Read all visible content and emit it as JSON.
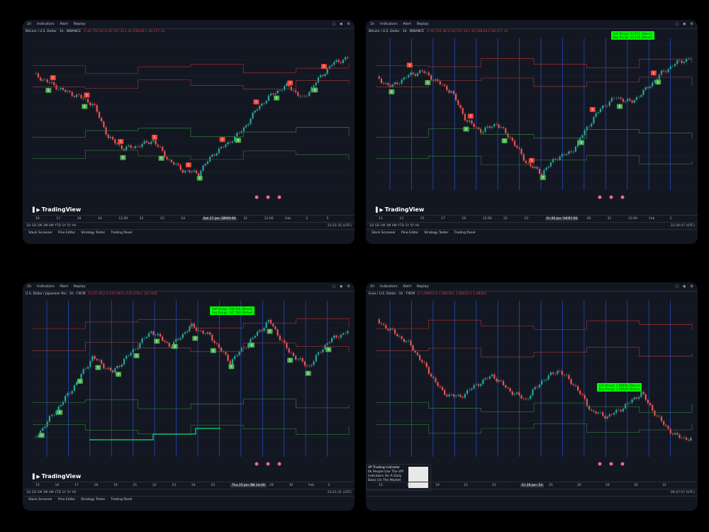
{
  "colors": {
    "background": "#131722",
    "grid": "#1f2430",
    "bull": "#26a69a",
    "bear": "#ef5350",
    "buy": "#4caf50",
    "sell": "#f44336",
    "blue_line": "#2962ff",
    "alert_green": "#00ff00"
  },
  "toolbar": {
    "interval": "1h",
    "indicators_label": "Indicators",
    "alert_label": "Alert",
    "replay_label": "Replay"
  },
  "tabs": [
    "Stock Screener",
    "Pine Editor",
    "Strategy Tester",
    "Trading Panel"
  ],
  "timeframes": [
    "1D",
    "5D",
    "1M",
    "3M",
    "6M",
    "YTD",
    "1Y",
    "5Y",
    "All"
  ],
  "branding": {
    "logo_text": "TradingView"
  },
  "panels": [
    {
      "symbol_line": "Bitcoin / U.S. Dollar · 1h · BINANCE",
      "ohlc": "O 42,752.46 H 42,767.33 L 42,558.00 C 42,577.33",
      "ticker": "BTCUSDT",
      "x_labels": [
        "16",
        "17",
        "18",
        "19",
        "12:00",
        "22",
        "23",
        "24",
        "Sat 27 Jan '24 09:00",
        "29",
        "31",
        "12:00",
        "Feb",
        "2",
        "5"
      ],
      "clock": "23:21:35 (UTC)",
      "signals": {
        "buy": [
          "B",
          "B",
          "B",
          "B",
          "B",
          "B",
          "B",
          "B"
        ],
        "sell": [
          "S",
          "S",
          "S",
          "S",
          "S",
          "S",
          "S",
          "S",
          "S"
        ]
      }
    },
    {
      "symbol_line": "Bitcoin / U.S. Dollar · 1h · BINANCE",
      "ohlc": "O 42,752.46 H 42,767.33 L 42,558.00 C 42,577.33",
      "ticker": "BTCUSDT",
      "x_labels": [
        "11",
        "13",
        "15",
        "17",
        "19",
        "12:00",
        "22",
        "23",
        "Fri 26 Jan '24 07:00",
        "27",
        "29",
        "31",
        "12:00",
        "Feb",
        "2"
      ],
      "clock": "22:30:47 (UTC)",
      "alert": [
        "Sell Range: 43,471 (Above)",
        "Buy Range: 43,018 (Below)"
      ],
      "signals": {
        "buy": [
          "B",
          "B",
          "B",
          "B",
          "B",
          "B",
          "B",
          "B"
        ],
        "sell": [
          "S",
          "S",
          "S",
          "S",
          "S"
        ]
      }
    },
    {
      "symbol_line": "U.S. Dollar / Japanese Yen · 1h · FXCM",
      "ohlc": "O 147.912 H 147.963 L 147.879 C 147.935",
      "ticker": "USDJPY",
      "x_labels": [
        "15",
        "16",
        "17",
        "18",
        "19",
        "21",
        "22",
        "23",
        "24",
        "25",
        "Thu 25 Jan '24 14:00",
        "26",
        "29",
        "30",
        "Feb",
        "2"
      ],
      "clock": "23:21:31 (UTC)",
      "alert": [
        "Sell Range: 148.200 (Above)",
        "Buy Range: 147.500 (Below)"
      ],
      "signals": {
        "buy": [
          "B",
          "B",
          "B",
          "B",
          "B",
          "B",
          "B",
          "B",
          "B",
          "B",
          "B",
          "B",
          "B",
          "B",
          "B",
          "B"
        ],
        "sell": []
      }
    },
    {
      "symbol_line": "Euro / U.S. Dollar · 1h · FXCM",
      "ohlc": "O 1.08455 H 1.08478 L 1.08431 C 1.08452",
      "ticker": "EURUSD",
      "x_labels": [
        "15",
        "17",
        "19",
        "21",
        "23",
        "Fri 26 Jan '24",
        "25",
        "26",
        "29",
        "30",
        "31"
      ],
      "clock": "06:47:57 (UTC)",
      "alert": [
        "Sell Range: 1.08800 (Above)",
        "Buy Range: 1.08400 (Below)"
      ],
      "promo": {
        "title": "VP Trading Indicator",
        "line1": "6k People Use The VIP Indicators On A Daily",
        "line2": "Basis On The Market"
      },
      "signals": {
        "buy": [],
        "sell": []
      }
    }
  ],
  "chart_data": [
    {
      "type": "line",
      "title": "Bitcoin / U.S. Dollar · 1h · BINANCE",
      "xlabel": "",
      "ylabel": "",
      "values": [
        42.5,
        42.2,
        41.9,
        41.7,
        41.4,
        40.2,
        39.8,
        39.9,
        40.1,
        39.4,
        39.0,
        38.9,
        39.6,
        40.0,
        40.5,
        41.3,
        41.8,
        42.1,
        41.6,
        42.3,
        42.9,
        43.1
      ]
    },
    {
      "type": "line",
      "title": "Bitcoin / U.S. Dollar · 1h · BINANCE",
      "xlabel": "",
      "ylabel": "",
      "values": [
        42.8,
        42.5,
        42.9,
        43.1,
        42.7,
        42.3,
        41.2,
        40.8,
        41.1,
        40.5,
        39.6,
        39.2,
        39.8,
        40.0,
        40.9,
        41.7,
        42.1,
        41.9,
        42.4,
        43.0,
        43.4,
        43.6
      ]
    },
    {
      "type": "line",
      "title": "U.S. Dollar / Japanese Yen · 1h · FXCM",
      "xlabel": "",
      "ylabel": "",
      "values": [
        145.9,
        146.4,
        146.9,
        147.5,
        147.2,
        147.6,
        148.0,
        147.7,
        148.1,
        147.9,
        147.4,
        147.8,
        148.2,
        147.6,
        147.3,
        147.8,
        148.0
      ]
    },
    {
      "type": "line",
      "title": "Euro / U.S. Dollar · 1h · FXCM",
      "xlabel": "",
      "ylabel": "",
      "values": [
        1.0975,
        1.0962,
        1.0948,
        1.0921,
        1.0893,
        1.0888,
        1.0902,
        1.0913,
        1.0896,
        1.0885,
        1.0907,
        1.0919,
        1.0901,
        1.0872,
        1.0866,
        1.0878,
        1.0893,
        1.0865,
        1.0845,
        1.084
      ]
    }
  ]
}
